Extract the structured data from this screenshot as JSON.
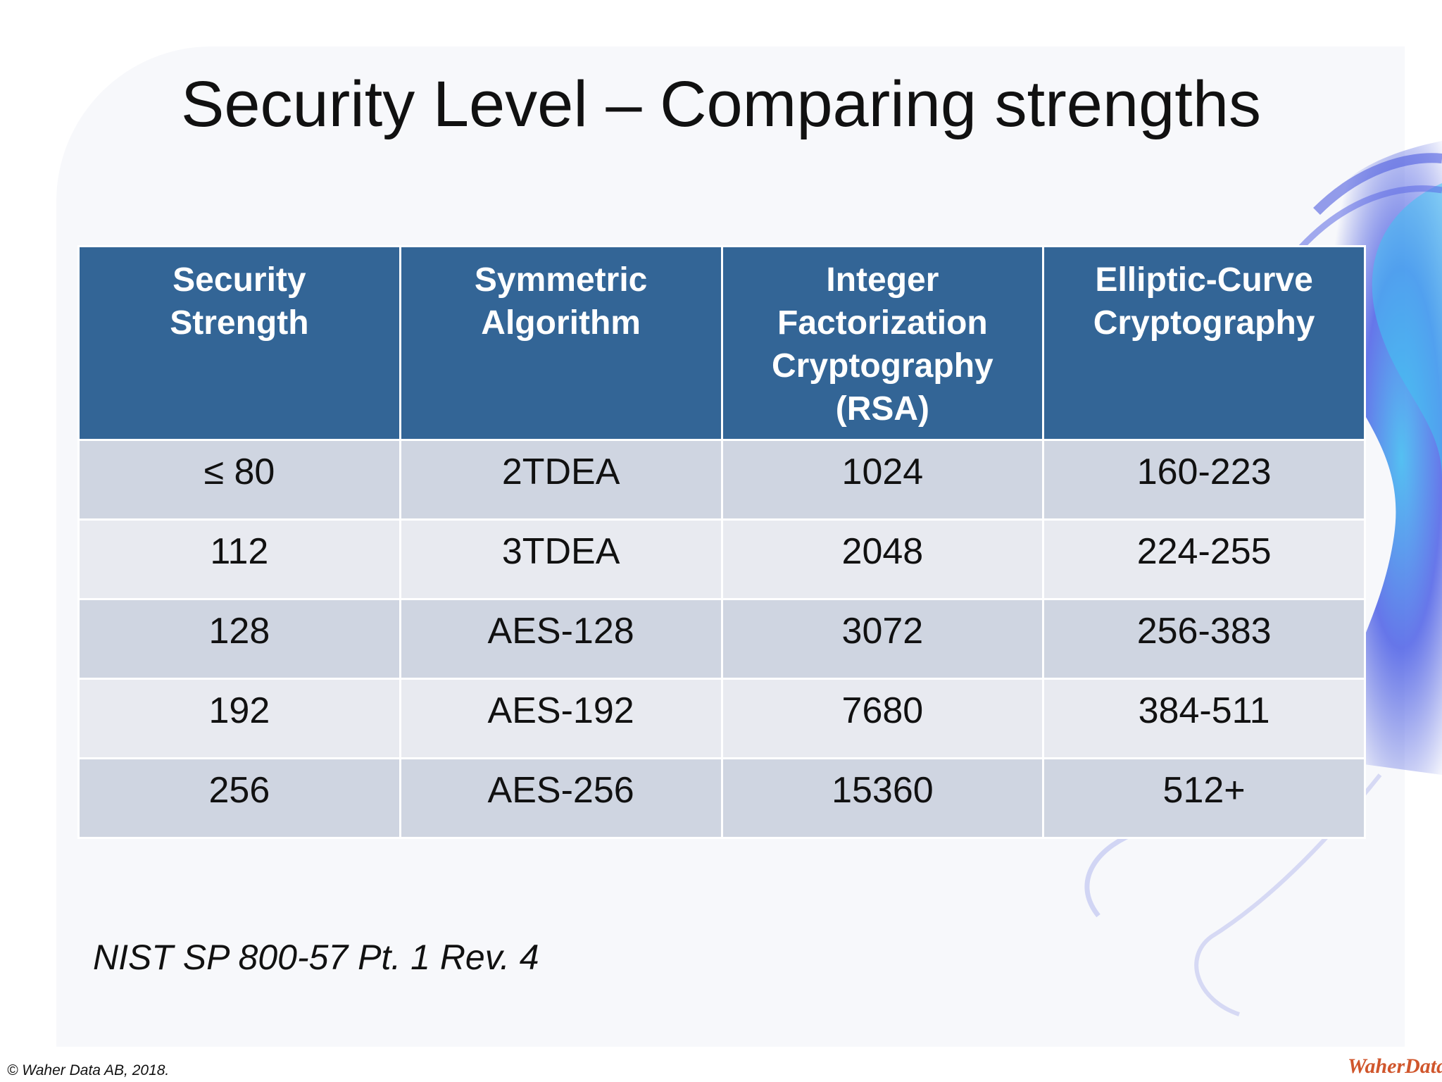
{
  "slide": {
    "title": "Security Level – Comparing strengths",
    "source": "NIST SP 800-57 Pt. 1 Rev. 4",
    "copyright": "© Waher Data AB, 2018.",
    "logo_text": "WaherData"
  },
  "table": {
    "headers": [
      [
        "Security",
        "Strength"
      ],
      [
        "Symmetric",
        "Algorithm"
      ],
      [
        "Integer",
        "Factorization",
        "Cryptography",
        "(RSA)"
      ],
      [
        "Elliptic-Curve",
        "Cryptography"
      ]
    ],
    "rows": [
      [
        "≤ 80",
        "2TDEA",
        "1024",
        "160-223"
      ],
      [
        "112",
        "3TDEA",
        "2048",
        "224-255"
      ],
      [
        "128",
        "AES-128",
        "3072",
        "256-383"
      ],
      [
        "192",
        "AES-192",
        "7680",
        "384-511"
      ],
      [
        "256",
        "AES-256",
        "15360",
        "512+"
      ]
    ]
  },
  "colors": {
    "header_bg": "#336596",
    "row_dark": "#cfd5e1",
    "row_light": "#e8eaf0",
    "swirl": "#3d4fd8",
    "logo": "#d0562c"
  }
}
